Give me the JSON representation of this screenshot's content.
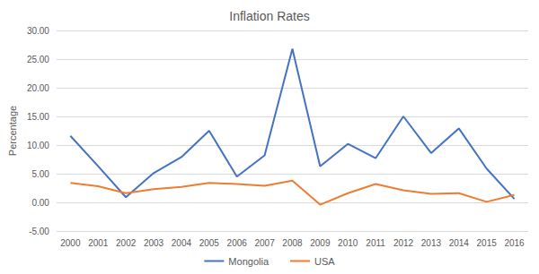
{
  "chart_data": {
    "type": "line",
    "title": "Inflation Rates",
    "y_label": "Percentage",
    "categories": [
      "2000",
      "2001",
      "2002",
      "2003",
      "2004",
      "2005",
      "2006",
      "2007",
      "2008",
      "2009",
      "2010",
      "2011",
      "2012",
      "2013",
      "2014",
      "2015",
      "2016"
    ],
    "series": [
      {
        "name": "Mongolia",
        "color": "#4472c4",
        "values": [
          11.6,
          6.3,
          0.9,
          5.1,
          7.9,
          12.5,
          4.5,
          8.2,
          26.8,
          6.3,
          10.2,
          7.7,
          15.0,
          8.6,
          12.9,
          5.9,
          0.6
        ]
      },
      {
        "name": "USA",
        "color": "#ed7d31",
        "values": [
          3.4,
          2.8,
          1.6,
          2.3,
          2.7,
          3.4,
          3.2,
          2.9,
          3.8,
          -0.4,
          1.6,
          3.2,
          2.1,
          1.5,
          1.6,
          0.1,
          1.3
        ]
      }
    ],
    "ylim": [
      -5,
      30
    ],
    "yticks": [
      {
        "value": -5,
        "label": "-5.00"
      },
      {
        "value": 0,
        "label": "0.00"
      },
      {
        "value": 5,
        "label": "5.00"
      },
      {
        "value": 10,
        "label": "10.00"
      },
      {
        "value": 15,
        "label": "15.00"
      },
      {
        "value": 20,
        "label": "20.00"
      },
      {
        "value": 25,
        "label": "25.00"
      },
      {
        "value": 30,
        "label": "30.00"
      }
    ],
    "grid": true,
    "legend": "bottom"
  }
}
